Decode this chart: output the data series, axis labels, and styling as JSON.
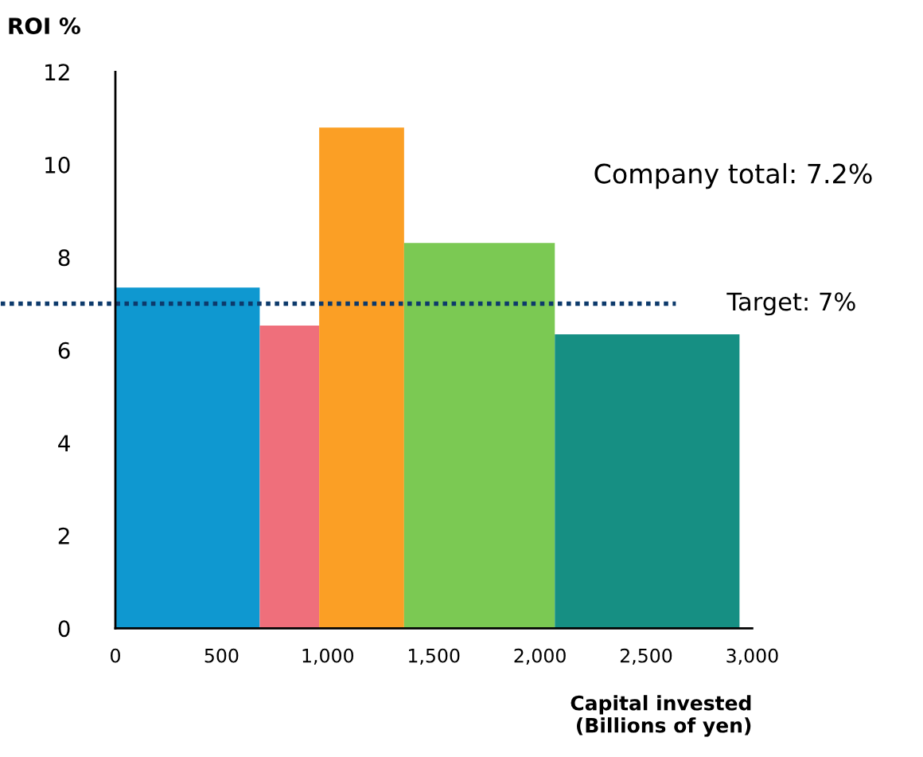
{
  "chart_data": {
    "type": "histogram",
    "ylabel": "ROI %",
    "xlabel": "Capital invested\n(Billions of yen)",
    "bins": [
      0,
      680,
      960,
      1360,
      2070,
      2940
    ],
    "values": [
      7.35,
      6.53,
      10.8,
      8.31,
      6.34
    ],
    "colors": [
      "#0f98d0",
      "#ef6f7b",
      "#fb9f25",
      "#7bc953",
      "#168f83"
    ],
    "xlim": [
      0,
      3000
    ],
    "xticks": [
      0,
      {
        "value": 500,
        "label": "500"
      },
      {
        "value": 1000,
        "label": "1,000"
      },
      {
        "value": 1500,
        "label": "1,500"
      },
      {
        "value": 2000,
        "label": "2,000"
      },
      {
        "value": 2500,
        "label": "2,500"
      },
      {
        "value": 3000,
        "label": "3,000"
      }
    ],
    "ylim": [
      0,
      12
    ],
    "yticks": [
      0,
      2,
      4,
      6,
      8,
      10,
      12
    ],
    "ref_lines": [
      {
        "axis": "y",
        "value": 7,
        "label": "Target: 7%",
        "color": "#0d3a6b",
        "line_style": "dotted"
      }
    ],
    "annotations": [
      "Company total: 7.2%"
    ],
    "grid": false,
    "legend": false
  }
}
